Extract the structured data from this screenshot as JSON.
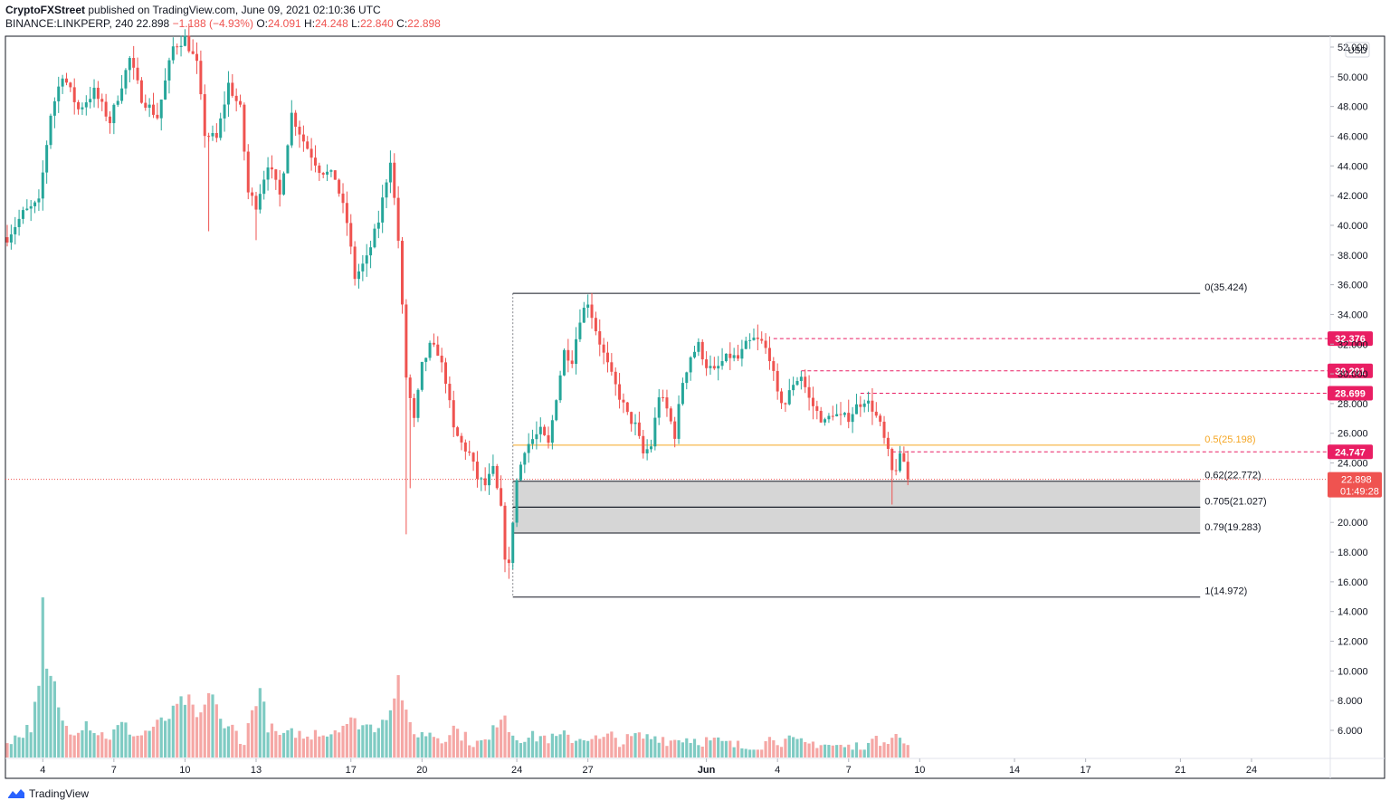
{
  "header": {
    "publisher": "CryptoFXStreet",
    "published_text": "published on TradingView.com, June 09, 2021 02:10:36 UTC",
    "symbol": "BINANCE:LINKPERP, 240",
    "last": "22.898",
    "change": "−1.188 (−4.93%)",
    "o_label": "O:",
    "o_value": "24.091",
    "h_label": "H:",
    "h_value": "24.248",
    "l_label": "L:",
    "l_value": "22.840",
    "c_label": "C:",
    "c_value": "22.898"
  },
  "footer": {
    "brand": "TradingView"
  },
  "colors": {
    "up": "#26a69a",
    "down": "#ef5350",
    "up_volume": "#7fcbc3",
    "down_volume": "#f5a7a5",
    "fib_line": "#131722",
    "fib_mid": "#f5a623",
    "zone_fill": "#d2d2d2",
    "resistance": "#e91e63"
  },
  "chart_data": {
    "type": "candlestick",
    "y_axis": {
      "currency": "USD",
      "range": [
        3.5,
        52.5
      ],
      "ticks": [
        "52.000",
        "50.000",
        "48.000",
        "46.000",
        "44.000",
        "42.000",
        "40.000",
        "38.000",
        "36.000",
        "34.000",
        "32.000",
        "30.000",
        "28.000",
        "26.000",
        "24.000",
        "22.000",
        "20.000",
        "18.000",
        "16.000",
        "14.000",
        "12.000",
        "10.000",
        "8.000",
        "6.000"
      ]
    },
    "x_axis": {
      "ticks": [
        {
          "label": "4",
          "candle": 9
        },
        {
          "label": "7",
          "candle": 27
        },
        {
          "label": "10",
          "candle": 45
        },
        {
          "label": "13",
          "candle": 63
        },
        {
          "label": "17",
          "candle": 87
        },
        {
          "label": "20",
          "candle": 105
        },
        {
          "label": "24",
          "candle": 129
        },
        {
          "label": "27",
          "candle": 147
        },
        {
          "label": "Jun",
          "candle": 177
        },
        {
          "label": "4",
          "candle": 195
        },
        {
          "label": "7",
          "candle": 213
        },
        {
          "label": "10",
          "candle": 231
        },
        {
          "label": "14",
          "candle": 255
        },
        {
          "label": "17",
          "candle": 273
        },
        {
          "label": "21",
          "candle": 297
        },
        {
          "label": "24",
          "candle": 315
        }
      ],
      "bold": [
        "Jun"
      ]
    },
    "fibonacci": [
      {
        "label": "0(35.424)",
        "value": 35.424
      },
      {
        "label": "0.5(25.198)",
        "value": 25.198,
        "highlight": true
      },
      {
        "label": "0.62(22.772)",
        "value": 22.772
      },
      {
        "label": "0.705(21.027)",
        "value": 21.027
      },
      {
        "label": "0.79(19.283)",
        "value": 19.283
      },
      {
        "label": "1(14.972)",
        "value": 14.972
      }
    ],
    "fib_range": {
      "start_candle": 128,
      "end_candle": 302
    },
    "resistance_levels": [
      {
        "label": "32.376",
        "value": 32.376,
        "start_candle": 194
      },
      {
        "label": "30.201",
        "value": 30.201,
        "start_candle": 201
      },
      {
        "label": "28.699",
        "value": 28.699,
        "start_candle": 216
      },
      {
        "label": "24.747",
        "value": 24.747,
        "start_candle": 224
      }
    ],
    "current_price": {
      "label": "22.898",
      "value": 22.898,
      "countdown": "01:49:28"
    },
    "ohlc_keypoints": [
      [
        0,
        39.2
      ],
      [
        4,
        40.8
      ],
      [
        8,
        41.5
      ],
      [
        11,
        47.5
      ],
      [
        14,
        50.2
      ],
      [
        18,
        47.8
      ],
      [
        22,
        49.0
      ],
      [
        26,
        47.0
      ],
      [
        31,
        51.2
      ],
      [
        34,
        48.6
      ],
      [
        38,
        47.3
      ],
      [
        42,
        52.0
      ],
      [
        45,
        52.6
      ],
      [
        48,
        50.8
      ],
      [
        50,
        46.2
      ],
      [
        53,
        45.8
      ],
      [
        56,
        49.5
      ],
      [
        59,
        47.8
      ],
      [
        61,
        42.2
      ],
      [
        63,
        41.4
      ],
      [
        66,
        44.2
      ],
      [
        69,
        42.0
      ],
      [
        72,
        47.5
      ],
      [
        75,
        45.7
      ],
      [
        79,
        43.8
      ],
      [
        83,
        43.2
      ],
      [
        86,
        40.2
      ],
      [
        88,
        36.5
      ],
      [
        91,
        37.7
      ],
      [
        94,
        40.3
      ],
      [
        97,
        44.5
      ],
      [
        99,
        39.0
      ],
      [
        101,
        29.8
      ],
      [
        103,
        26.8
      ],
      [
        105,
        30.5
      ],
      [
        107,
        31.8
      ],
      [
        109,
        31.5
      ],
      [
        111,
        29.6
      ],
      [
        113,
        26.2
      ],
      [
        115,
        25.3
      ],
      [
        117,
        24.6
      ],
      [
        119,
        23.0
      ],
      [
        121,
        22.5
      ],
      [
        123,
        23.5
      ],
      [
        125,
        20.8
      ],
      [
        126,
        17.8
      ],
      [
        127,
        17.0
      ],
      [
        128,
        20.2
      ],
      [
        129,
        22.8
      ],
      [
        131,
        25.0
      ],
      [
        133,
        25.6
      ],
      [
        135,
        26.1
      ],
      [
        137,
        25.2
      ],
      [
        139,
        28.5
      ],
      [
        141,
        31.5
      ],
      [
        143,
        31.0
      ],
      [
        145,
        33.8
      ],
      [
        147,
        34.9
      ],
      [
        149,
        33.0
      ],
      [
        151,
        31.3
      ],
      [
        153,
        29.8
      ],
      [
        155,
        28.5
      ],
      [
        157,
        27.2
      ],
      [
        159,
        26.5
      ],
      [
        161,
        24.6
      ],
      [
        163,
        25.2
      ],
      [
        165,
        28.6
      ],
      [
        167,
        27.6
      ],
      [
        169,
        25.9
      ],
      [
        171,
        29.5
      ],
      [
        173,
        31.2
      ],
      [
        175,
        31.9
      ],
      [
        177,
        30.6
      ],
      [
        179,
        30.1
      ],
      [
        181,
        30.8
      ],
      [
        183,
        31.2
      ],
      [
        185,
        31.0
      ],
      [
        187,
        31.9
      ],
      [
        189,
        32.3
      ],
      [
        191,
        32.1
      ],
      [
        193,
        31.2
      ],
      [
        195,
        28.5
      ],
      [
        197,
        28.0
      ],
      [
        199,
        29.4
      ],
      [
        201,
        29.9
      ],
      [
        203,
        28.3
      ],
      [
        205,
        27.4
      ],
      [
        207,
        26.7
      ],
      [
        209,
        27.4
      ],
      [
        211,
        27.0
      ],
      [
        213,
        27.1
      ],
      [
        215,
        27.8
      ],
      [
        217,
        28.3
      ],
      [
        219,
        27.7
      ],
      [
        221,
        26.5
      ],
      [
        223,
        24.6
      ],
      [
        224,
        23.4
      ],
      [
        225,
        23.7
      ],
      [
        226,
        24.3
      ],
      [
        227,
        24.1
      ],
      [
        228,
        22.9
      ]
    ],
    "volume_keypoints": [
      [
        0,
        5.4
      ],
      [
        3,
        5.6
      ],
      [
        6,
        6.3
      ],
      [
        8,
        8.8
      ],
      [
        9,
        14.6
      ],
      [
        10,
        10.0
      ],
      [
        12,
        9.0
      ],
      [
        14,
        6.5
      ],
      [
        17,
        6.0
      ],
      [
        20,
        6.6
      ],
      [
        23,
        5.8
      ],
      [
        26,
        5.6
      ],
      [
        29,
        6.4
      ],
      [
        33,
        5.6
      ],
      [
        37,
        6.2
      ],
      [
        41,
        6.9
      ],
      [
        44,
        7.9
      ],
      [
        46,
        8.0
      ],
      [
        48,
        6.7
      ],
      [
        50,
        7.6
      ],
      [
        52,
        8.7
      ],
      [
        55,
        5.9
      ],
      [
        57,
        6.2
      ],
      [
        60,
        5.2
      ],
      [
        62,
        7.3
      ],
      [
        64,
        8.8
      ],
      [
        66,
        6.3
      ],
      [
        68,
        5.8
      ],
      [
        70,
        5.5
      ],
      [
        73,
        5.9
      ],
      [
        76,
        5.4
      ],
      [
        78,
        6.1
      ],
      [
        81,
        5.7
      ],
      [
        84,
        6.3
      ],
      [
        87,
        6.6
      ],
      [
        90,
        6.4
      ],
      [
        93,
        6.2
      ],
      [
        96,
        7.1
      ],
      [
        98,
        8.0
      ],
      [
        99,
        10.0
      ],
      [
        100,
        7.6
      ],
      [
        102,
        6.5
      ],
      [
        104,
        5.6
      ],
      [
        107,
        5.9
      ],
      [
        110,
        5.4
      ],
      [
        113,
        6.2
      ],
      [
        116,
        5.5
      ],
      [
        119,
        5.1
      ],
      [
        122,
        5.3
      ],
      [
        124,
        6.6
      ],
      [
        126,
        7.3
      ],
      [
        127,
        6.0
      ],
      [
        129,
        5.6
      ],
      [
        132,
        5.5
      ],
      [
        135,
        5.6
      ],
      [
        138,
        5.4
      ],
      [
        141,
        5.6
      ],
      [
        144,
        5.4
      ],
      [
        147,
        5.6
      ],
      [
        150,
        5.3
      ],
      [
        153,
        5.6
      ],
      [
        156,
        5.2
      ],
      [
        159,
        5.6
      ],
      [
        162,
        5.5
      ],
      [
        165,
        5.6
      ],
      [
        168,
        5.3
      ],
      [
        171,
        5.5
      ],
      [
        174,
        5.4
      ],
      [
        177,
        5.3
      ],
      [
        180,
        5.2
      ],
      [
        183,
        5.0
      ],
      [
        186,
        4.9
      ],
      [
        189,
        4.8
      ],
      [
        192,
        5.2
      ],
      [
        194,
        5.6
      ],
      [
        196,
        5.3
      ],
      [
        199,
        5.2
      ],
      [
        202,
        5.0
      ],
      [
        205,
        5.2
      ],
      [
        208,
        5.0
      ],
      [
        211,
        4.9
      ],
      [
        214,
        4.8
      ],
      [
        217,
        5.0
      ],
      [
        219,
        5.0
      ],
      [
        220,
        5.9
      ],
      [
        221,
        5.4
      ],
      [
        223,
        5.5
      ],
      [
        225,
        5.6
      ],
      [
        227,
        5.2
      ],
      [
        228,
        4.7
      ]
    ]
  }
}
